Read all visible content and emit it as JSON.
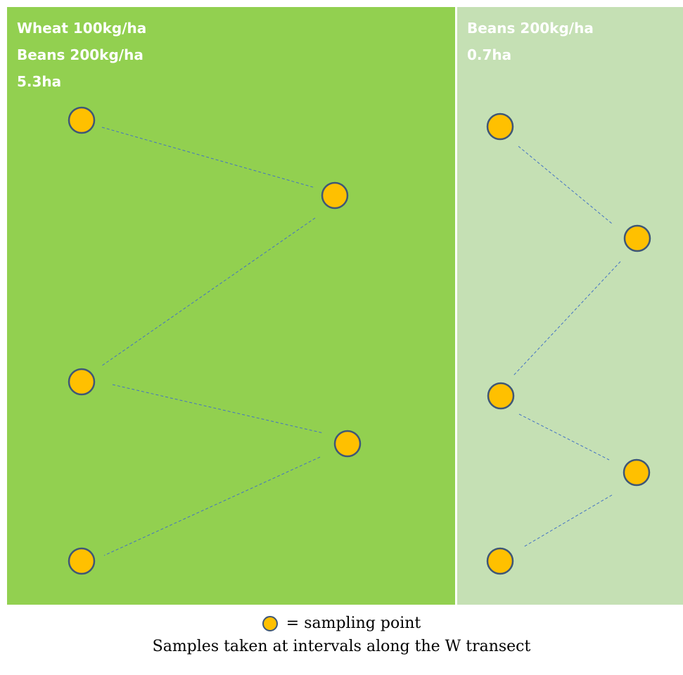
{
  "colors": {
    "field_left": "#92d050",
    "field_right": "#c5e0b4",
    "point_fill": "#ffc000",
    "point_stroke": "#3e5777",
    "transect_line": "#4472c4",
    "label_text": "#ffffff"
  },
  "fields": [
    {
      "name": "left-field",
      "labels": [
        "Wheat 100kg/ha",
        "Beans 200kg/ha",
        "5.3ha"
      ]
    },
    {
      "name": "right-field",
      "labels": [
        "Beans 200kg/ha",
        "0.7ha"
      ]
    }
  ],
  "legend": {
    "icon": "sampling-point-icon",
    "text": "= sampling point"
  },
  "caption": "Samples taken at intervals along the W transect"
}
